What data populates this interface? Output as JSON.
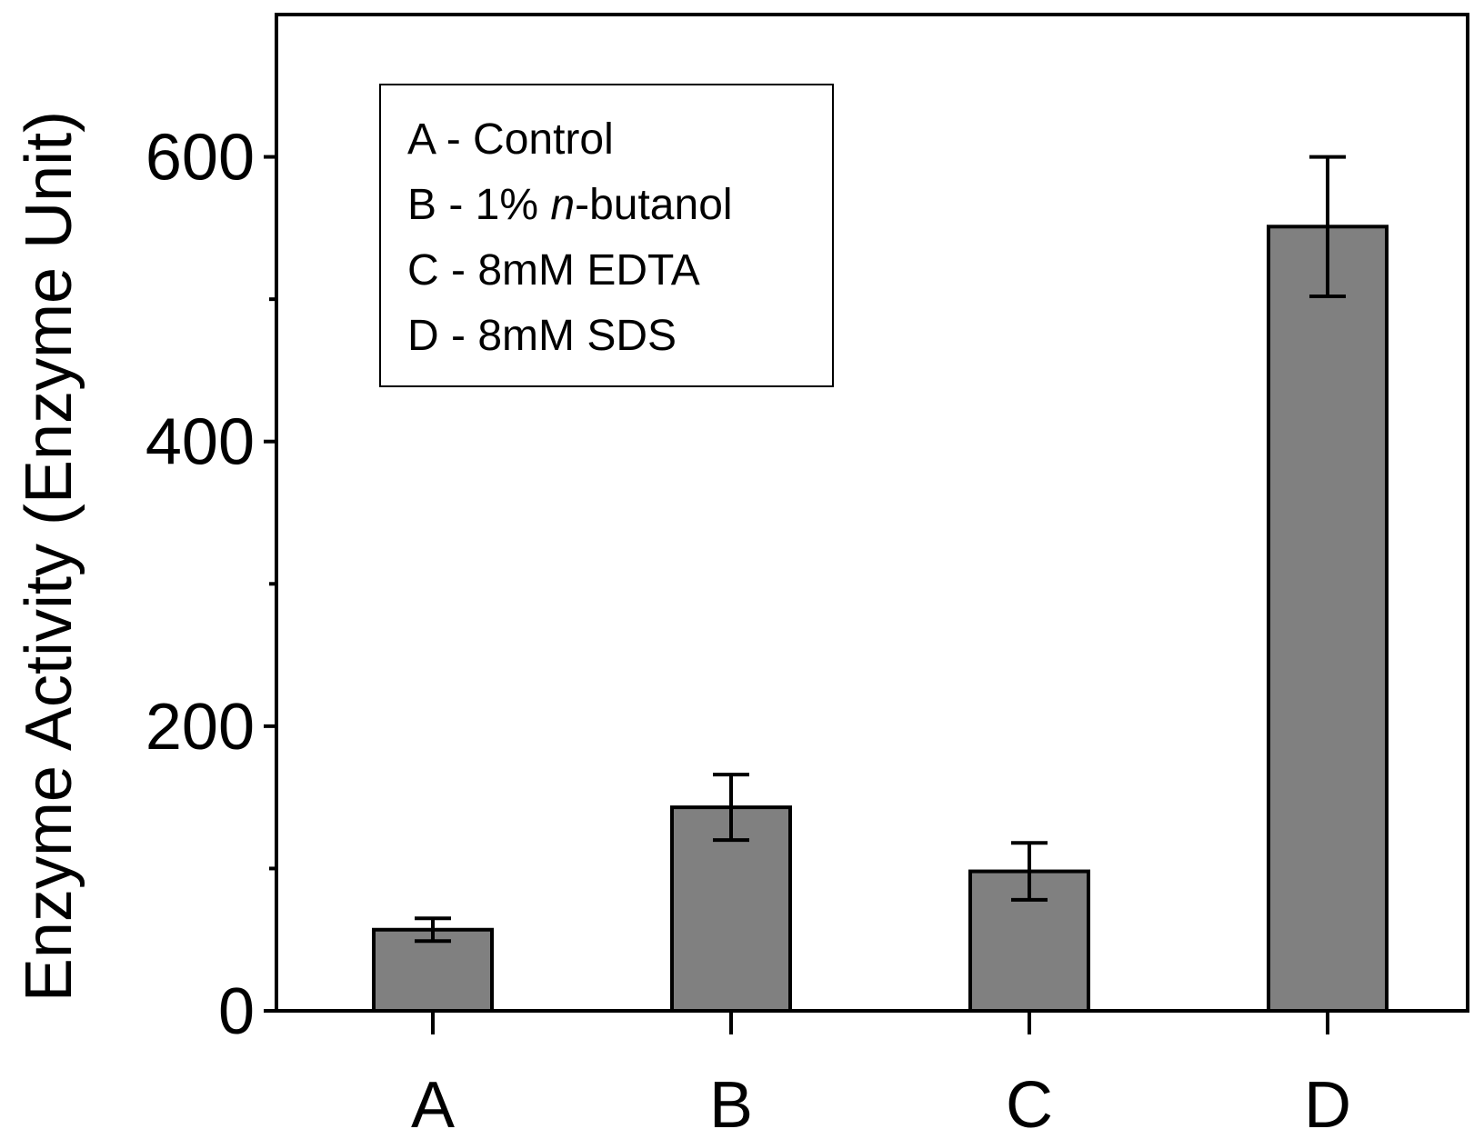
{
  "chart_data": {
    "type": "bar",
    "title": "",
    "xlabel": "",
    "ylabel": "Enzyme Activity (Enzyme Unit)",
    "categories": [
      "A",
      "B",
      "C",
      "D"
    ],
    "values": [
      57,
      143,
      98,
      551
    ],
    "error": [
      8,
      23,
      20,
      49
    ],
    "ylim": [
      0,
      700
    ],
    "yticks": [
      0,
      200,
      400,
      600
    ],
    "y_minor_ticks": [
      100,
      300,
      500
    ],
    "grid": false,
    "bar_color": "#808080",
    "edge_color": "#000000",
    "legend": {
      "position": "top-left",
      "entries": [
        {
          "key": "A",
          "sep": " - ",
          "pre": "Control",
          "italic": "",
          "post": ""
        },
        {
          "key": "B",
          "sep": " - ",
          "pre": "1% ",
          "italic": "n",
          "post": "-butanol"
        },
        {
          "key": "C",
          "sep": " - ",
          "pre": "8mM EDTA",
          "italic": "",
          "post": ""
        },
        {
          "key": "D",
          "sep": " - ",
          "pre": "8mM SDS",
          "italic": "",
          "post": ""
        }
      ]
    }
  }
}
